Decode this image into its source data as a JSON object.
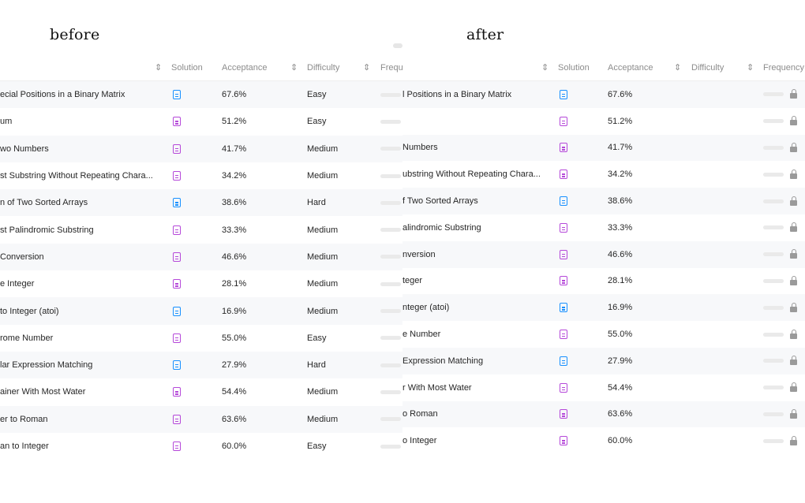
{
  "captions": {
    "before": "before",
    "after": "after"
  },
  "headers": {
    "solution": "Solution",
    "acceptance": "Acceptance",
    "difficulty": "Difficulty",
    "frequency_before": "Frequ",
    "frequency_after": "Frequency",
    "sort_glyph": "⇕"
  },
  "before": {
    "rows": [
      {
        "title": "ecial Positions in a Binary Matrix",
        "solution_icon": "solution-doc-blue-icon",
        "acceptance": "67.6%",
        "difficulty": "Easy"
      },
      {
        "title": "um",
        "solution_icon": "solution-doc-purple-icon",
        "acceptance": "51.2%",
        "difficulty": "Easy"
      },
      {
        "title": "wo Numbers",
        "solution_icon": "solution-doc-purple-icon",
        "acceptance": "41.7%",
        "difficulty": "Medium"
      },
      {
        "title": "st Substring Without Repeating Chara...",
        "solution_icon": "solution-doc-purple-icon",
        "acceptance": "34.2%",
        "difficulty": "Medium"
      },
      {
        "title": "n of Two Sorted Arrays",
        "solution_icon": "solution-doc-blue-icon",
        "acceptance": "38.6%",
        "difficulty": "Hard"
      },
      {
        "title": "st Palindromic Substring",
        "solution_icon": "solution-doc-purple-icon",
        "acceptance": "33.3%",
        "difficulty": "Medium"
      },
      {
        "title": " Conversion",
        "solution_icon": "solution-doc-purple-icon",
        "acceptance": "46.6%",
        "difficulty": "Medium"
      },
      {
        "title": "e Integer",
        "solution_icon": "solution-doc-purple-icon",
        "acceptance": "28.1%",
        "difficulty": "Medium"
      },
      {
        "title": "to Integer (atoi)",
        "solution_icon": "solution-doc-blue-icon",
        "acceptance": "16.9%",
        "difficulty": "Medium"
      },
      {
        "title": "rome Number",
        "solution_icon": "solution-doc-purple-icon",
        "acceptance": "55.0%",
        "difficulty": "Easy"
      },
      {
        "title": "lar Expression Matching",
        "solution_icon": "solution-doc-blue-icon",
        "acceptance": "27.9%",
        "difficulty": "Hard"
      },
      {
        "title": "ainer With Most Water",
        "solution_icon": "solution-doc-purple-icon",
        "acceptance": "54.4%",
        "difficulty": "Medium"
      },
      {
        "title": "er to Roman",
        "solution_icon": "solution-doc-purple-icon",
        "acceptance": "63.6%",
        "difficulty": "Medium"
      },
      {
        "title": "an to Integer",
        "solution_icon": "solution-doc-purple-icon",
        "acceptance": "60.0%",
        "difficulty": "Easy"
      }
    ]
  },
  "after": {
    "rows": [
      {
        "title": "l Positions in a Binary Matrix",
        "solution_icon": "solution-doc-blue-icon",
        "acceptance": "67.6%"
      },
      {
        "title": "",
        "solution_icon": "solution-doc-purple-icon",
        "acceptance": "51.2%"
      },
      {
        "title": "Numbers",
        "solution_icon": "solution-doc-purple-icon",
        "acceptance": "41.7%"
      },
      {
        "title": "ubstring Without Repeating Chara...",
        "solution_icon": "solution-doc-purple-icon",
        "acceptance": "34.2%"
      },
      {
        "title": "f Two Sorted Arrays",
        "solution_icon": "solution-doc-blue-icon",
        "acceptance": "38.6%"
      },
      {
        "title": "alindromic Substring",
        "solution_icon": "solution-doc-purple-icon",
        "acceptance": "33.3%"
      },
      {
        "title": "nversion",
        "solution_icon": "solution-doc-purple-icon",
        "acceptance": "46.6%"
      },
      {
        "title": "teger",
        "solution_icon": "solution-doc-purple-icon",
        "acceptance": "28.1%"
      },
      {
        "title": "nteger (atoi)",
        "solution_icon": "solution-doc-blue-icon",
        "acceptance": "16.9%"
      },
      {
        "title": "e Number",
        "solution_icon": "solution-doc-purple-icon",
        "acceptance": "55.0%"
      },
      {
        "title": "Expression Matching",
        "solution_icon": "solution-doc-blue-icon",
        "acceptance": "27.9%"
      },
      {
        "title": "r With Most Water",
        "solution_icon": "solution-doc-purple-icon",
        "acceptance": "54.4%"
      },
      {
        "title": "o Roman",
        "solution_icon": "solution-doc-purple-icon",
        "acceptance": "63.6%"
      },
      {
        "title": "o Integer",
        "solution_icon": "solution-doc-purple-icon",
        "acceptance": "60.0%"
      }
    ]
  },
  "colors": {
    "easy": "#00af9b",
    "medium": "#ffb800",
    "hard": "#ff2d55",
    "solution_purple": "#b548d9",
    "solution_blue": "#1890ff"
  }
}
